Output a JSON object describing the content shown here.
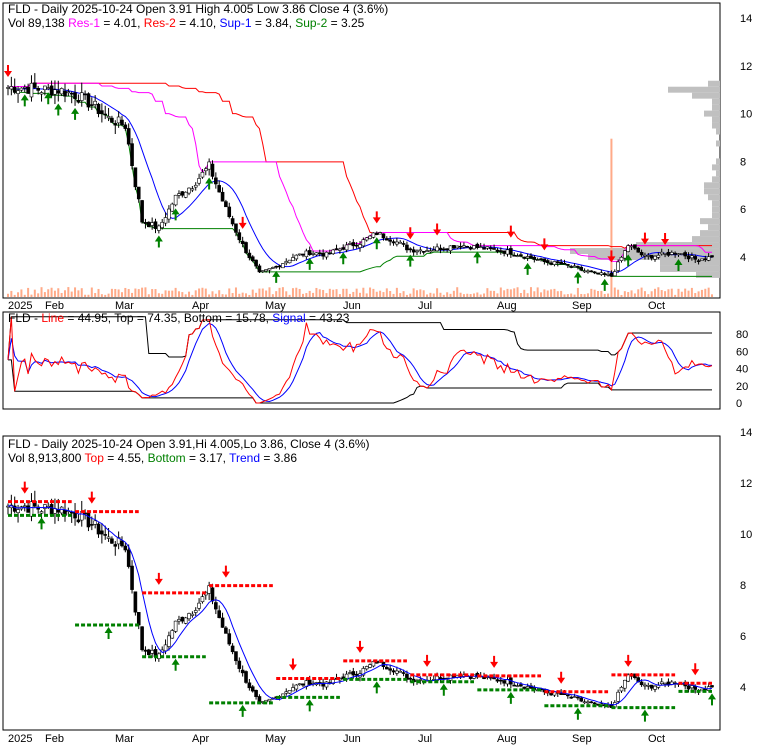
{
  "top_panel": {
    "line1": "FLD - Daily 2025-10-24 Open 3.91  High 4.005  Low 3.86  Close 4 (3.6%)",
    "vol": "Vol 89,138",
    "res1_label": "Res-1",
    "res1_value": " = 4.01, ",
    "res2_label": "Res-2",
    "res2_value": " = 4.10, ",
    "sup1_label": "Sup-1",
    "sup1_value": " = 3.84, ",
    "sup2_label": "Sup-2",
    "sup2_value": " = 3.25",
    "y_ticks": [
      "14",
      "12",
      "10",
      "8",
      "6",
      "4"
    ]
  },
  "rsi_panel": {
    "prefix": "FLD - ",
    "line_label": "Line",
    "mid": " = 44.95, Top = 74.35, Bottom = 15.78, ",
    "signal_label": "Signal",
    "signal_value": " = 43.23",
    "y_ticks": [
      "80",
      "60",
      "40",
      "20",
      "0"
    ]
  },
  "lower_panel": {
    "line1": "FLD - Daily 2025-10-24 Open 3.91,Hi 4.005,Lo 3.86, Close 4 (3.6%)",
    "vol": "Vol 8,913,800 ",
    "top_label": "Top",
    "top_value": " = 4.55, ",
    "bottom_label": "Bottom",
    "bottom_value": " = 3.17, ",
    "trend_label": "Trend",
    "trend_value": " = 3.86",
    "y_ticks": [
      "14",
      "12",
      "10",
      "8",
      "6",
      "4"
    ]
  },
  "x_labels": [
    "2025",
    "Feb",
    "Mar",
    "Apr",
    "May",
    "Jun",
    "Jul",
    "Aug",
    "Sep",
    "Oct"
  ],
  "colors": {
    "res1": "#ff00ff",
    "res2": "#ff0000",
    "sup1": "#0000ff",
    "sup2": "#008000",
    "up": "#ffffff",
    "down": "#000000",
    "volume": "#ffaa88",
    "vbp": "#c0c0c0"
  },
  "chart_data": {
    "type": "candlestick",
    "ticker": "FLD",
    "period": "Daily",
    "weekly_closes": [
      11.1,
      11.1,
      11.0,
      11.0,
      10.8,
      10.4,
      9.8,
      9.5,
      5.5,
      5.2,
      6.5,
      7.0,
      7.8,
      6.0,
      4.5,
      3.3,
      3.6,
      4.0,
      4.2,
      4.1,
      4.4,
      4.6,
      5.0,
      4.7,
      4.3,
      4.3,
      4.4,
      4.5,
      4.4,
      4.3,
      4.2,
      4.0,
      3.8,
      3.7,
      3.5,
      3.3,
      3.2,
      4.5,
      4.0,
      4.1,
      4.2,
      3.9,
      4.0
    ],
    "price_range": [
      2.5,
      15
    ],
    "rsi_range": [
      0,
      90
    ],
    "last": {
      "open": 3.91,
      "high": 4.005,
      "low": 3.86,
      "close": 4,
      "change_pct": 3.6
    }
  }
}
